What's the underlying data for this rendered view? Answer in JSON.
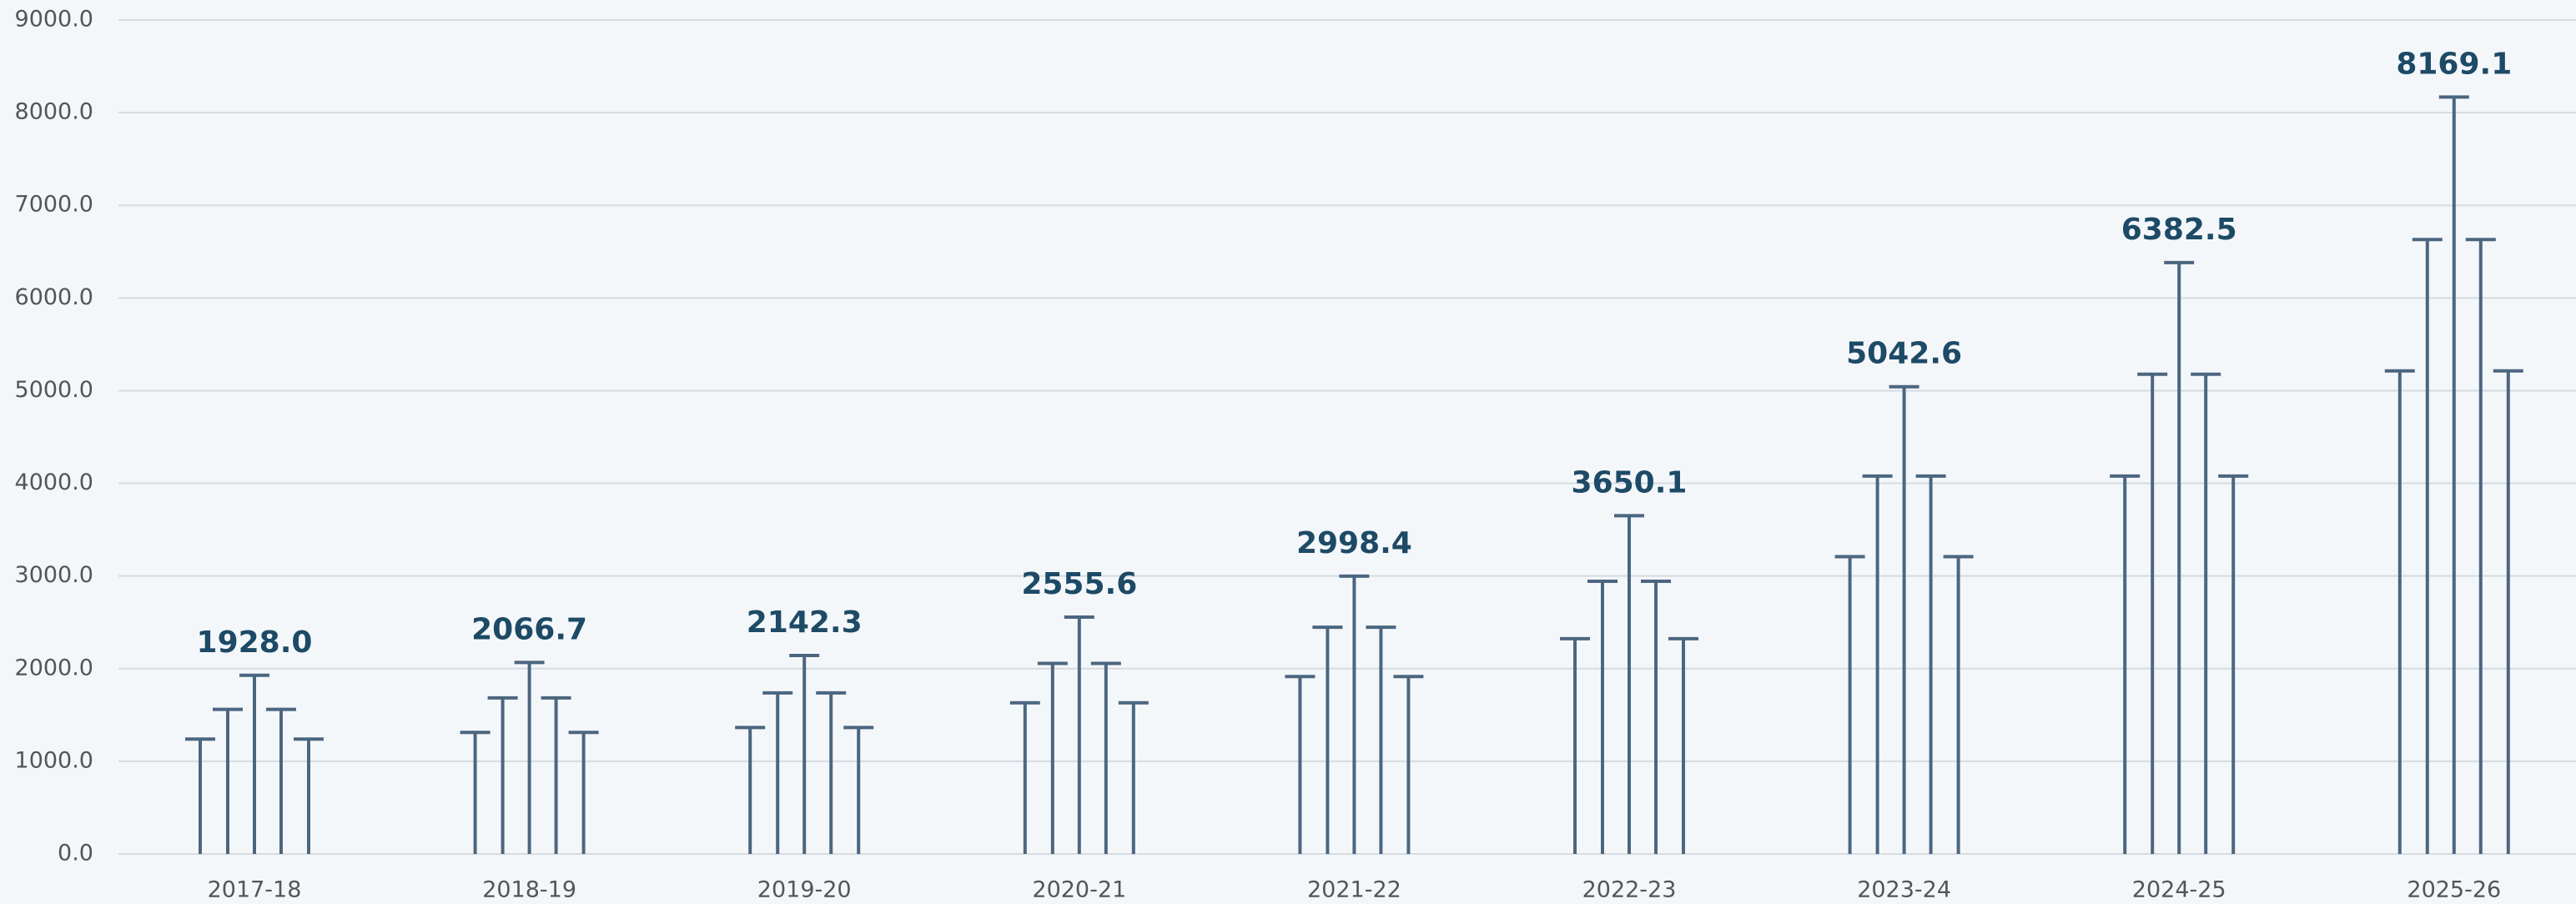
{
  "chart_data": {
    "type": "lollipop",
    "categories": [
      "2017-18",
      "2018-19",
      "2019-20",
      "2020-21",
      "2021-22",
      "2022-23",
      "2023-24",
      "2024-25",
      "2025-26"
    ],
    "series": [
      {
        "color": "#4b6680",
        "values": [
          1240,
          1312,
          1365,
          1631,
          1915,
          2323,
          3209,
          4078,
          5213
        ]
      },
      {
        "color": "#4b6680",
        "values": [
          1560,
          1684,
          1738,
          2057,
          2447,
          2943,
          4078,
          5177,
          6631
        ]
      },
      {
        "color": "#4b6680",
        "values": [
          1928.0,
          2066.7,
          2142.3,
          2555.6,
          2998.4,
          3650.1,
          5042.6,
          6382.5,
          8169.1
        ],
        "value_labels": [
          "1928.0",
          "2066.7",
          "2142.3",
          "2555.6",
          "2998.4",
          "3650.1",
          "5042.6",
          "6382.5",
          "8169.1"
        ]
      },
      {
        "color": "#4b6680",
        "values": [
          1560,
          1684,
          1738,
          2057,
          2447,
          2943,
          4078,
          5177,
          6631
        ]
      },
      {
        "color": "#4b6680",
        "values": [
          1240,
          1312,
          1365,
          1631,
          1915,
          2323,
          3209,
          4078,
          5213
        ]
      }
    ],
    "ylim": [
      0,
      9000
    ],
    "yticks": [
      {
        "value": 0,
        "label": "0.0"
      },
      {
        "value": 1000,
        "label": "1000.0"
      },
      {
        "value": 2000,
        "label": "2000.0"
      },
      {
        "value": 3000,
        "label": "3000.0"
      },
      {
        "value": 4000,
        "label": "4000.0"
      },
      {
        "value": 5000,
        "label": "5000.0"
      },
      {
        "value": 6000,
        "label": "6000.0"
      },
      {
        "value": 7000,
        "label": "7000.0"
      },
      {
        "value": 8000,
        "label": "8000.0"
      },
      {
        "value": 9000,
        "label": "9000.0"
      }
    ],
    "grid": true
  }
}
